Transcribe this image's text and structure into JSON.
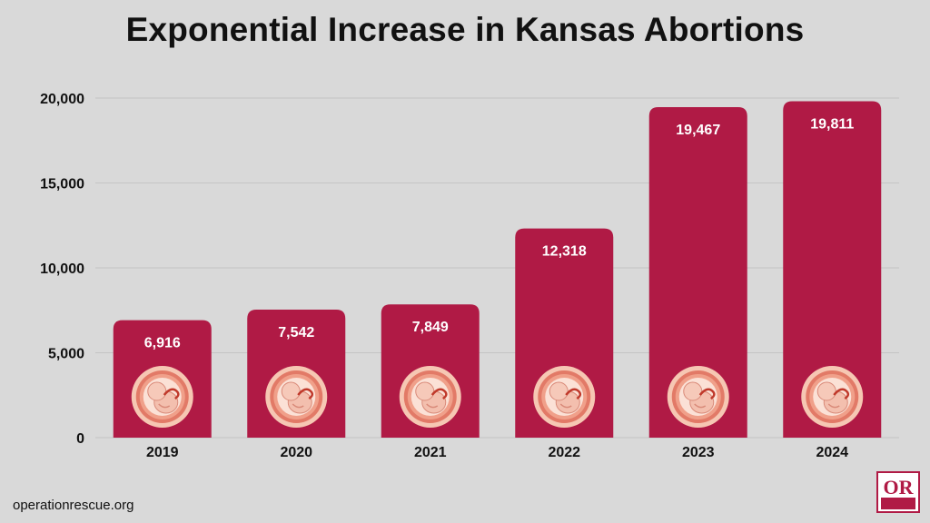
{
  "chart_data": {
    "type": "bar",
    "title": "Exponential Increase in Kansas Abortions",
    "categories": [
      "2019",
      "2020",
      "2021",
      "2022",
      "2023",
      "2024"
    ],
    "values": [
      6916,
      7542,
      7849,
      12318,
      19467,
      19811
    ],
    "value_labels": [
      "6,916",
      "7,542",
      "7,849",
      "12,318",
      "19,467",
      "19,811"
    ],
    "y_ticks": [
      0,
      5000,
      10000,
      15000,
      20000
    ],
    "y_tick_labels": [
      "0",
      "5,000",
      "10,000",
      "15,000",
      "20,000"
    ],
    "ylim": [
      0,
      20000
    ],
    "grid": true,
    "xlabel": "",
    "ylabel": ""
  },
  "colors": {
    "bar": "#b01a45",
    "background": "#d9d9d9",
    "grid": "#c4c4c4",
    "value_label": "#ffffff"
  },
  "bar_icon": "fetus-in-womb-icon",
  "footer": {
    "url": "operationrescue.org"
  },
  "logo": {
    "icon": "operation-rescue-logo",
    "text": "OPERATION RESCUE"
  }
}
